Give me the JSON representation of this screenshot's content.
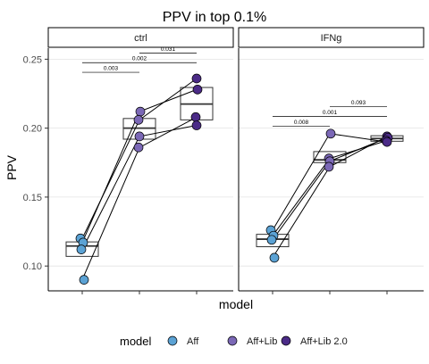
{
  "chart_data": {
    "type": "scatter",
    "title": "PPV in top 0.1%",
    "xlabel": "model",
    "ylabel": "PPV",
    "ylim": [
      0.082,
      0.258
    ],
    "y_ticks": [
      0.1,
      0.15,
      0.2,
      0.25
    ],
    "y_tick_labels": [
      "0.10",
      "0.15",
      "0.20",
      "0.25"
    ],
    "grid": "horizontal major",
    "categories": [
      "Aff",
      "Aff+Lib",
      "Aff+Lib 2.0"
    ],
    "colors": {
      "Aff": "#5ba2d4",
      "Aff+Lib": "#7b68b6",
      "Aff+Lib 2.0": "#4b2b87"
    },
    "legend": {
      "title": "model",
      "position": "bottom",
      "labels": [
        "Aff",
        "Aff+Lib",
        "Aff+Lib 2.0"
      ]
    },
    "panels": [
      {
        "name": "ctrl",
        "points": {
          "Aff": [
            0.12,
            0.117,
            0.112,
            0.09
          ],
          "Aff+Lib": [
            0.212,
            0.206,
            0.194,
            0.186
          ],
          "Aff+Lib 2.0": [
            0.236,
            0.228,
            0.208,
            0.202
          ]
        },
        "lines": [
          [
            0.12,
            0.206,
            0.236
          ],
          [
            0.117,
            0.212,
            0.228
          ],
          [
            0.112,
            0.194,
            0.202
          ],
          [
            0.09,
            0.186,
            0.208
          ]
        ],
        "boxes": {
          "Aff": {
            "q1": 0.107,
            "median": 0.1145,
            "q3": 0.1175
          },
          "Aff+Lib": {
            "q1": 0.192,
            "median": 0.2,
            "q3": 0.207
          },
          "Aff+Lib 2.0": {
            "q1": 0.206,
            "median": 0.2175,
            "q3": 0.2295
          }
        },
        "comparisons": [
          {
            "from": "Aff",
            "to": "Aff+Lib",
            "p": "0.003",
            "y": 0.2405
          },
          {
            "from": "Aff",
            "to": "Aff+Lib 2.0",
            "p": "0.002",
            "y": 0.2475
          },
          {
            "from": "Aff+Lib",
            "to": "Aff+Lib 2.0",
            "p": "0.031",
            "y": 0.2545
          }
        ]
      },
      {
        "name": "IFNg",
        "points": {
          "Aff": [
            0.126,
            0.122,
            0.119,
            0.106
          ],
          "Aff+Lib": [
            0.196,
            0.178,
            0.176,
            0.172
          ],
          "Aff+Lib 2.0": [
            0.194,
            0.193,
            0.191,
            0.19
          ]
        },
        "lines": [
          [
            0.126,
            0.196,
            0.19
          ],
          [
            0.122,
            0.178,
            0.191
          ],
          [
            0.119,
            0.176,
            0.193
          ],
          [
            0.106,
            0.172,
            0.194
          ]
        ],
        "boxes": {
          "Aff": {
            "q1": 0.114,
            "median": 0.1195,
            "q3": 0.123
          },
          "Aff+Lib": {
            "q1": 0.175,
            "median": 0.177,
            "q3": 0.183
          },
          "Aff+Lib 2.0": {
            "q1": 0.1905,
            "median": 0.1925,
            "q3": 0.1945
          }
        },
        "comparisons": [
          {
            "from": "Aff",
            "to": "Aff+Lib",
            "p": "0.008",
            "y": 0.2015
          },
          {
            "from": "Aff",
            "to": "Aff+Lib 2.0",
            "p": "0.001",
            "y": 0.2085
          },
          {
            "from": "Aff+Lib",
            "to": "Aff+Lib 2.0",
            "p": "0.093",
            "y": 0.2155
          }
        ]
      }
    ]
  }
}
